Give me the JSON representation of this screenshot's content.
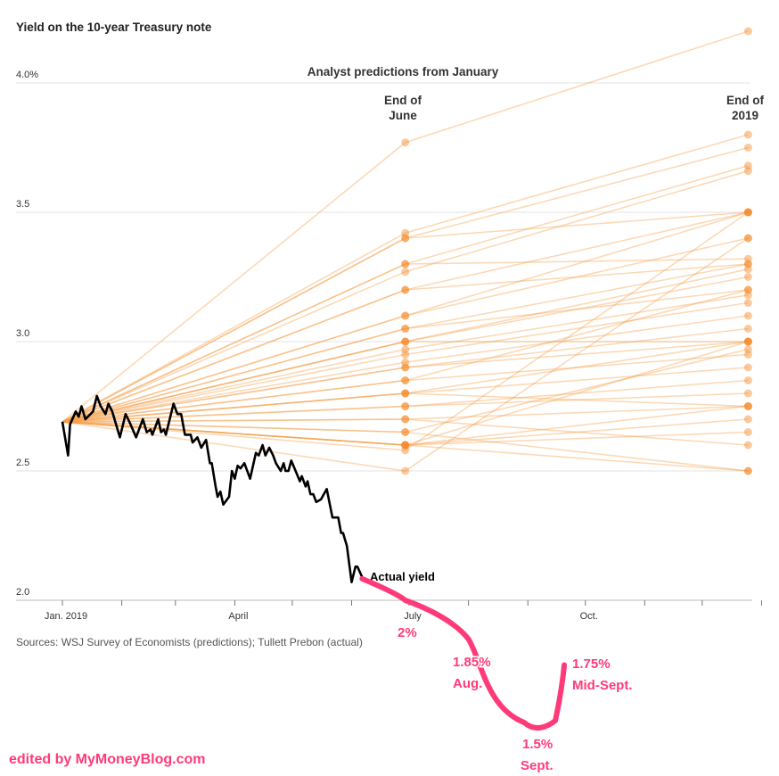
{
  "chart_data": {
    "type": "line",
    "title": "Yield on the 10-year Treasury note",
    "subtitle": "Analyst predictions from January",
    "ylim": [
      2.0,
      4.2
    ],
    "yticks": [
      {
        "v": 4.0,
        "label": "4.0%"
      },
      {
        "v": 3.5,
        "label": "3.5"
      },
      {
        "v": 3.0,
        "label": "3.0"
      },
      {
        "v": 2.5,
        "label": "2.5"
      },
      {
        "v": 2.0,
        "label": "2.0"
      }
    ],
    "x_unit": "day of 2019",
    "xlim": [
      0,
      365
    ],
    "month_ticks": [
      0,
      31,
      59,
      90,
      120,
      151,
      181,
      212,
      243,
      273,
      304,
      334,
      365
    ],
    "xtick_labels": [
      {
        "d": 0,
        "label": "Jan. 2019"
      },
      {
        "d": 90,
        "label": "April"
      },
      {
        "d": 181,
        "label": "July"
      },
      {
        "d": 273,
        "label": "Oct."
      }
    ],
    "prediction_start": {
      "day": 0,
      "value": 2.69
    },
    "prediction_points": {
      "june_day": 179,
      "end_day": 358,
      "june_label": [
        "End of",
        "June"
      ],
      "end_label": [
        "End of",
        "2019"
      ]
    },
    "predictions": [
      [
        3.77,
        4.2
      ],
      [
        3.42,
        3.8
      ],
      [
        3.4,
        3.75
      ],
      [
        3.4,
        3.5
      ],
      [
        3.3,
        3.68
      ],
      [
        3.3,
        3.32
      ],
      [
        3.27,
        3.66
      ],
      [
        3.2,
        3.5
      ],
      [
        3.2,
        3.3
      ],
      [
        3.1,
        3.4
      ],
      [
        3.1,
        3.5
      ],
      [
        3.05,
        3.3
      ],
      [
        3.05,
        3.2
      ],
      [
        3.0,
        3.0
      ],
      [
        3.0,
        3.28
      ],
      [
        3.0,
        3.25
      ],
      [
        2.97,
        3.18
      ],
      [
        2.95,
        3.15
      ],
      [
        2.92,
        3.1
      ],
      [
        2.9,
        3.0
      ],
      [
        2.9,
        3.05
      ],
      [
        2.85,
        3.2
      ],
      [
        2.85,
        2.95
      ],
      [
        2.8,
        2.9
      ],
      [
        2.8,
        3.0
      ],
      [
        2.75,
        2.85
      ],
      [
        2.75,
        2.8
      ],
      [
        2.7,
        2.75
      ],
      [
        2.7,
        2.6
      ],
      [
        2.65,
        2.97
      ],
      [
        2.6,
        3.0
      ],
      [
        2.6,
        2.5
      ],
      [
        2.6,
        2.7
      ],
      [
        2.6,
        2.65
      ],
      [
        2.58,
        3.5
      ],
      [
        2.5,
        3.4
      ],
      [
        2.6,
        2.75
      ],
      [
        2.65,
        2.5
      ],
      [
        2.8,
        2.75
      ]
    ],
    "actual": [
      [
        0,
        2.69
      ],
      [
        3,
        2.56
      ],
      [
        4,
        2.68
      ],
      [
        7,
        2.73
      ],
      [
        8.5,
        2.71
      ],
      [
        10,
        2.75
      ],
      [
        12,
        2.7
      ],
      [
        16,
        2.73
      ],
      [
        18,
        2.79
      ],
      [
        20,
        2.75
      ],
      [
        22.5,
        2.72
      ],
      [
        24,
        2.76
      ],
      [
        26,
        2.73
      ],
      [
        30,
        2.63
      ],
      [
        33,
        2.72
      ],
      [
        35,
        2.69
      ],
      [
        38.5,
        2.63
      ],
      [
        42,
        2.7
      ],
      [
        44,
        2.65
      ],
      [
        46,
        2.66
      ],
      [
        47,
        2.64
      ],
      [
        50,
        2.7
      ],
      [
        51.5,
        2.65
      ],
      [
        53,
        2.66
      ],
      [
        54,
        2.64
      ],
      [
        58,
        2.76
      ],
      [
        60,
        2.72
      ],
      [
        62,
        2.72
      ],
      [
        64,
        2.64
      ],
      [
        67,
        2.64
      ],
      [
        68,
        2.61
      ],
      [
        70.5,
        2.63
      ],
      [
        72.5,
        2.59
      ],
      [
        75,
        2.62
      ],
      [
        77,
        2.53
      ],
      [
        78,
        2.53
      ],
      [
        80,
        2.44
      ],
      [
        81,
        2.4
      ],
      [
        82.5,
        2.42
      ],
      [
        84,
        2.37
      ],
      [
        87,
        2.4
      ],
      [
        88.5,
        2.5
      ],
      [
        90,
        2.47
      ],
      [
        91.5,
        2.52
      ],
      [
        93,
        2.51
      ],
      [
        95,
        2.53
      ],
      [
        98,
        2.47
      ],
      [
        101,
        2.57
      ],
      [
        102.5,
        2.56
      ],
      [
        104.5,
        2.6
      ],
      [
        106,
        2.56
      ],
      [
        108,
        2.59
      ],
      [
        110,
        2.56
      ],
      [
        111.5,
        2.53
      ],
      [
        114,
        2.5
      ],
      [
        115.5,
        2.53
      ],
      [
        116.5,
        2.5
      ],
      [
        118,
        2.5
      ],
      [
        119.5,
        2.54
      ],
      [
        124,
        2.46
      ],
      [
        125,
        2.48
      ],
      [
        127,
        2.44
      ],
      [
        128,
        2.46
      ],
      [
        129.5,
        2.41
      ],
      [
        131,
        2.41
      ],
      [
        132.5,
        2.38
      ],
      [
        135,
        2.39
      ],
      [
        138,
        2.43
      ],
      [
        141,
        2.32
      ],
      [
        144,
        2.32
      ],
      [
        145.5,
        2.26
      ],
      [
        146.5,
        2.26
      ],
      [
        148.5,
        2.21
      ],
      [
        151,
        2.07
      ],
      [
        153,
        2.13
      ],
      [
        154,
        2.13
      ],
      [
        156.5,
        2.09
      ]
    ],
    "actual_label": "Actual yield",
    "annotation_path": [
      [
        156.5,
        2.09
      ],
      [
        179,
        2.0
      ],
      [
        212,
        1.85
      ],
      [
        248,
        1.5
      ],
      [
        262,
        1.75
      ]
    ],
    "annotations": {
      "july": "2%",
      "aug_value": "1.85%",
      "aug": "Aug.",
      "sept_value": "1.5%",
      "sept": "Sept.",
      "mid_value": "1.75%",
      "mid": "Mid-Sept."
    },
    "source": "Sources: WSJ Survey of Economists (predictions); Tullett Prebon (actual)",
    "watermark": "edited by MyMoneyBlog.com",
    "colors": {
      "line": "#f4a04a",
      "dot": "#f38a2a",
      "actual": "#000000",
      "annotation": "#ff3a78",
      "grid": "#e3e3e3"
    }
  }
}
